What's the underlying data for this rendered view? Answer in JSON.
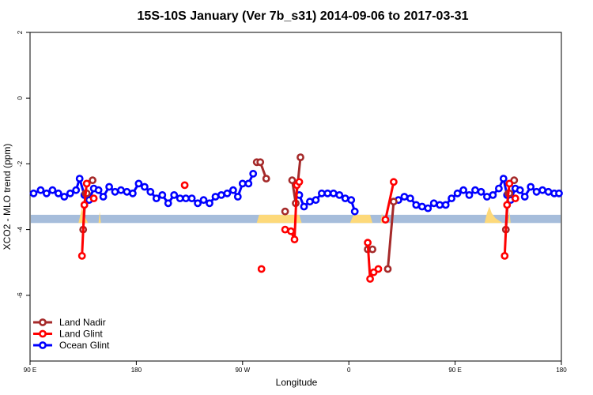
{
  "chart_data": {
    "type": "line",
    "title": "15S-10S January (Ver 7b_s31)   2014-09-06 to 2017-03-31",
    "xlabel": "Longitude",
    "ylabel": "XCO2 - MLO trend (ppm)",
    "xlim": [
      90,
      540
    ],
    "ylim": [
      -8,
      2
    ],
    "x_ticks": [
      {
        "value": 90,
        "label": "90 E"
      },
      {
        "value": 180,
        "label": "180"
      },
      {
        "value": 270,
        "label": "90 W"
      },
      {
        "value": 360,
        "label": "0"
      },
      {
        "value": 450,
        "label": "90 E"
      },
      {
        "value": 540,
        "label": "180"
      }
    ],
    "y_ticks": [
      {
        "value": 2,
        "label": "2"
      },
      {
        "value": 0,
        "label": "0"
      },
      {
        "value": -2,
        "label": "-2"
      },
      {
        "value": -4,
        "label": "-4"
      },
      {
        "value": -6,
        "label": "-6"
      }
    ],
    "grid": false,
    "legend_position": "bottom-left",
    "background_band": {
      "y_top": -3.55,
      "y_bottom": -3.8,
      "ocean_color": "#a6bddb",
      "land_color": "#fdd97a",
      "land_x_ranges": [
        [
          131,
          139
        ],
        [
          148,
          150
        ],
        [
          282,
          320
        ],
        [
          361,
          380
        ],
        [
          387,
          390
        ],
        [
          475,
          490
        ],
        [
          495,
          497
        ]
      ],
      "land_profile": [
        [
          [
            131,
            -3.8
          ],
          [
            133,
            -3.5
          ],
          [
            134,
            -3.3
          ],
          [
            135,
            -3.5
          ],
          [
            137,
            -3.65
          ],
          [
            139,
            -3.8
          ]
        ],
        [
          [
            148,
            -3.8
          ],
          [
            149,
            -3.45
          ],
          [
            150,
            -3.8
          ]
        ],
        [
          [
            282,
            -3.8
          ],
          [
            284,
            -3.55
          ],
          [
            300,
            -3.55
          ],
          [
            318,
            -3.55
          ],
          [
            320,
            -3.8
          ]
        ],
        [
          [
            361,
            -3.8
          ],
          [
            364,
            -3.55
          ],
          [
            378,
            -3.55
          ],
          [
            380,
            -3.8
          ]
        ],
        [
          [
            387,
            -3.8
          ],
          [
            388,
            -3.5
          ],
          [
            390,
            -3.8
          ]
        ],
        [
          [
            475,
            -3.8
          ],
          [
            477,
            -3.5
          ],
          [
            479,
            -3.3
          ],
          [
            481,
            -3.5
          ],
          [
            484,
            -3.65
          ],
          [
            490,
            -3.8
          ]
        ],
        [
          [
            495,
            -3.8
          ],
          [
            496,
            -3.45
          ],
          [
            497,
            -3.8
          ]
        ]
      ]
    },
    "series": [
      {
        "name": "Land Nadir",
        "color": "#a52a2a",
        "segments": [
          [
            [
              135,
              -4.0
            ],
            [
              137,
              -2.9
            ],
            [
              138,
              -2.9
            ]
          ],
          [
            [
              143,
              -2.5
            ]
          ],
          [
            [
              282,
              -1.95
            ],
            [
              285,
              -1.95
            ],
            [
              290,
              -2.45
            ]
          ],
          [
            [
              306,
              -3.45
            ]
          ],
          [
            [
              312,
              -2.5
            ],
            [
              315,
              -3.2
            ],
            [
              319,
              -1.8
            ]
          ],
          [
            [
              376,
              -4.6
            ],
            [
              380,
              -4.6
            ]
          ],
          [
            [
              393,
              -5.2
            ],
            [
              398,
              -3.15
            ]
          ],
          [
            [
              493,
              -4.0
            ],
            [
              495,
              -2.9
            ],
            [
              496,
              -2.9
            ]
          ],
          [
            [
              500,
              -2.5
            ]
          ]
        ]
      },
      {
        "name": "Land Glint",
        "color": "#ff0000",
        "segments": [
          [
            [
              134,
              -4.8
            ],
            [
              136,
              -3.25
            ],
            [
              138,
              -2.6
            ]
          ],
          [
            [
              144,
              -3.05
            ]
          ],
          [
            [
              221,
              -2.65
            ]
          ],
          [
            [
              286,
              -5.2
            ]
          ],
          [
            [
              306,
              -4.0
            ],
            [
              311,
              -4.05
            ],
            [
              314,
              -4.3
            ],
            [
              316,
              -2.65
            ],
            [
              318,
              -2.55
            ]
          ],
          [
            [
              376,
              -4.4
            ],
            [
              378,
              -5.5
            ],
            [
              381,
              -5.3
            ],
            [
              385,
              -5.2
            ]
          ],
          [
            [
              391,
              -3.7
            ],
            [
              398,
              -2.55
            ]
          ],
          [
            [
              492,
              -4.8
            ],
            [
              494,
              -3.25
            ],
            [
              496,
              -2.6
            ]
          ],
          [
            [
              501,
              -3.05
            ]
          ]
        ]
      },
      {
        "name": "Ocean Glint",
        "color": "#0000ff",
        "segments": [
          [
            [
              93,
              -2.9
            ],
            [
              99,
              -2.8
            ],
            [
              104,
              -2.9
            ],
            [
              109,
              -2.8
            ],
            [
              114,
              -2.9
            ],
            [
              119,
              -3.0
            ],
            [
              124,
              -2.9
            ],
            [
              129,
              -2.8
            ],
            [
              132,
              -2.45
            ],
            [
              136,
              -2.95
            ],
            [
              140,
              -3.1
            ],
            [
              144,
              -2.75
            ],
            [
              148,
              -2.8
            ],
            [
              152,
              -3.0
            ],
            [
              157,
              -2.7
            ],
            [
              162,
              -2.85
            ],
            [
              167,
              -2.8
            ],
            [
              172,
              -2.85
            ],
            [
              177,
              -2.9
            ],
            [
              182,
              -2.6
            ],
            [
              187,
              -2.7
            ],
            [
              192,
              -2.85
            ],
            [
              197,
              -3.05
            ],
            [
              202,
              -2.95
            ],
            [
              207,
              -3.2
            ],
            [
              212,
              -2.95
            ],
            [
              217,
              -3.05
            ],
            [
              222,
              -3.05
            ],
            [
              227,
              -3.05
            ],
            [
              232,
              -3.2
            ],
            [
              237,
              -3.1
            ],
            [
              242,
              -3.2
            ],
            [
              247,
              -3.0
            ],
            [
              252,
              -2.95
            ],
            [
              257,
              -2.9
            ],
            [
              262,
              -2.8
            ],
            [
              266,
              -3.0
            ],
            [
              270,
              -2.6
            ],
            [
              275,
              -2.6
            ],
            [
              279,
              -2.3
            ]
          ],
          [
            [
              318,
              -2.95
            ],
            [
              322,
              -3.3
            ],
            [
              327,
              -3.15
            ],
            [
              332,
              -3.1
            ],
            [
              337,
              -2.9
            ],
            [
              342,
              -2.9
            ],
            [
              347,
              -2.9
            ],
            [
              352,
              -2.95
            ],
            [
              357,
              -3.05
            ],
            [
              362,
              -3.1
            ],
            [
              365,
              -3.45
            ]
          ],
          [
            [
              402,
              -3.1
            ],
            [
              407,
              -3.0
            ],
            [
              412,
              -3.05
            ],
            [
              417,
              -3.25
            ],
            [
              422,
              -3.3
            ],
            [
              427,
              -3.35
            ],
            [
              432,
              -3.2
            ],
            [
              437,
              -3.25
            ],
            [
              442,
              -3.25
            ],
            [
              447,
              -3.05
            ],
            [
              452,
              -2.9
            ],
            [
              457,
              -2.8
            ],
            [
              462,
              -2.95
            ],
            [
              467,
              -2.8
            ],
            [
              472,
              -2.85
            ],
            [
              477,
              -3.0
            ],
            [
              482,
              -2.95
            ],
            [
              487,
              -2.75
            ],
            [
              491,
              -2.45
            ],
            [
              494,
              -2.95
            ],
            [
              497,
              -3.1
            ],
            [
              501,
              -2.75
            ],
            [
              505,
              -2.8
            ],
            [
              509,
              -3.0
            ],
            [
              514,
              -2.7
            ],
            [
              519,
              -2.85
            ],
            [
              524,
              -2.8
            ],
            [
              529,
              -2.85
            ],
            [
              534,
              -2.9
            ],
            [
              538,
              -2.9
            ]
          ]
        ]
      }
    ]
  }
}
